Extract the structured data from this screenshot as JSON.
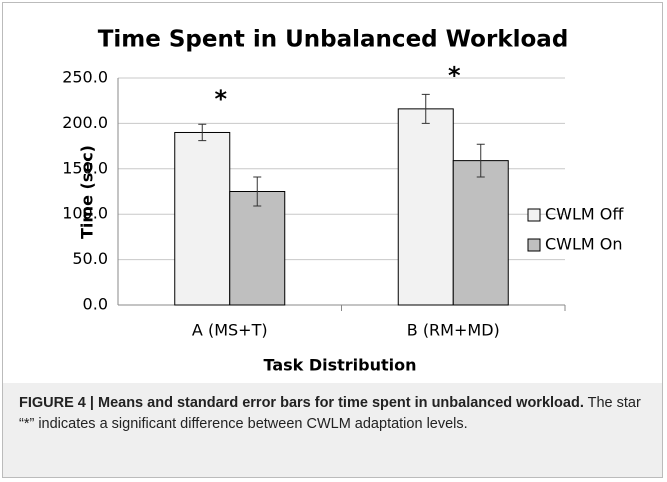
{
  "chart_data": {
    "type": "bar",
    "title": "Time Spent in Unbalanced Workload",
    "x_label": "Task Distribution",
    "y_label": "Time (sec)",
    "categories": [
      "A (MS+T)",
      "B (RM+MD)"
    ],
    "series": [
      {
        "name": "CWLM Off",
        "color": "#f2f2f2",
        "values": [
          190,
          216
        ],
        "errors": [
          9,
          16
        ]
      },
      {
        "name": "CWLM On",
        "color": "#bfbfbf",
        "values": [
          125,
          159
        ],
        "errors": [
          16,
          18
        ]
      }
    ],
    "annotations": [
      "*",
      "*"
    ],
    "ylim": [
      0,
      250
    ],
    "yticks": [
      {
        "value": 0,
        "label": "0.0"
      },
      {
        "value": 50,
        "label": "50.0"
      },
      {
        "value": 100,
        "label": "100.0"
      },
      {
        "value": 150,
        "label": "150.0"
      },
      {
        "value": 200,
        "label": "200.0"
      },
      {
        "value": 250,
        "label": "250.0"
      }
    ],
    "grid": true,
    "legend": "right"
  },
  "caption": {
    "title": "FIGURE 4 | Means and standard error bars for time spent in unbalanced workload.",
    "text": "The star “*” indicates a significant difference between CWLM adaptation levels."
  }
}
